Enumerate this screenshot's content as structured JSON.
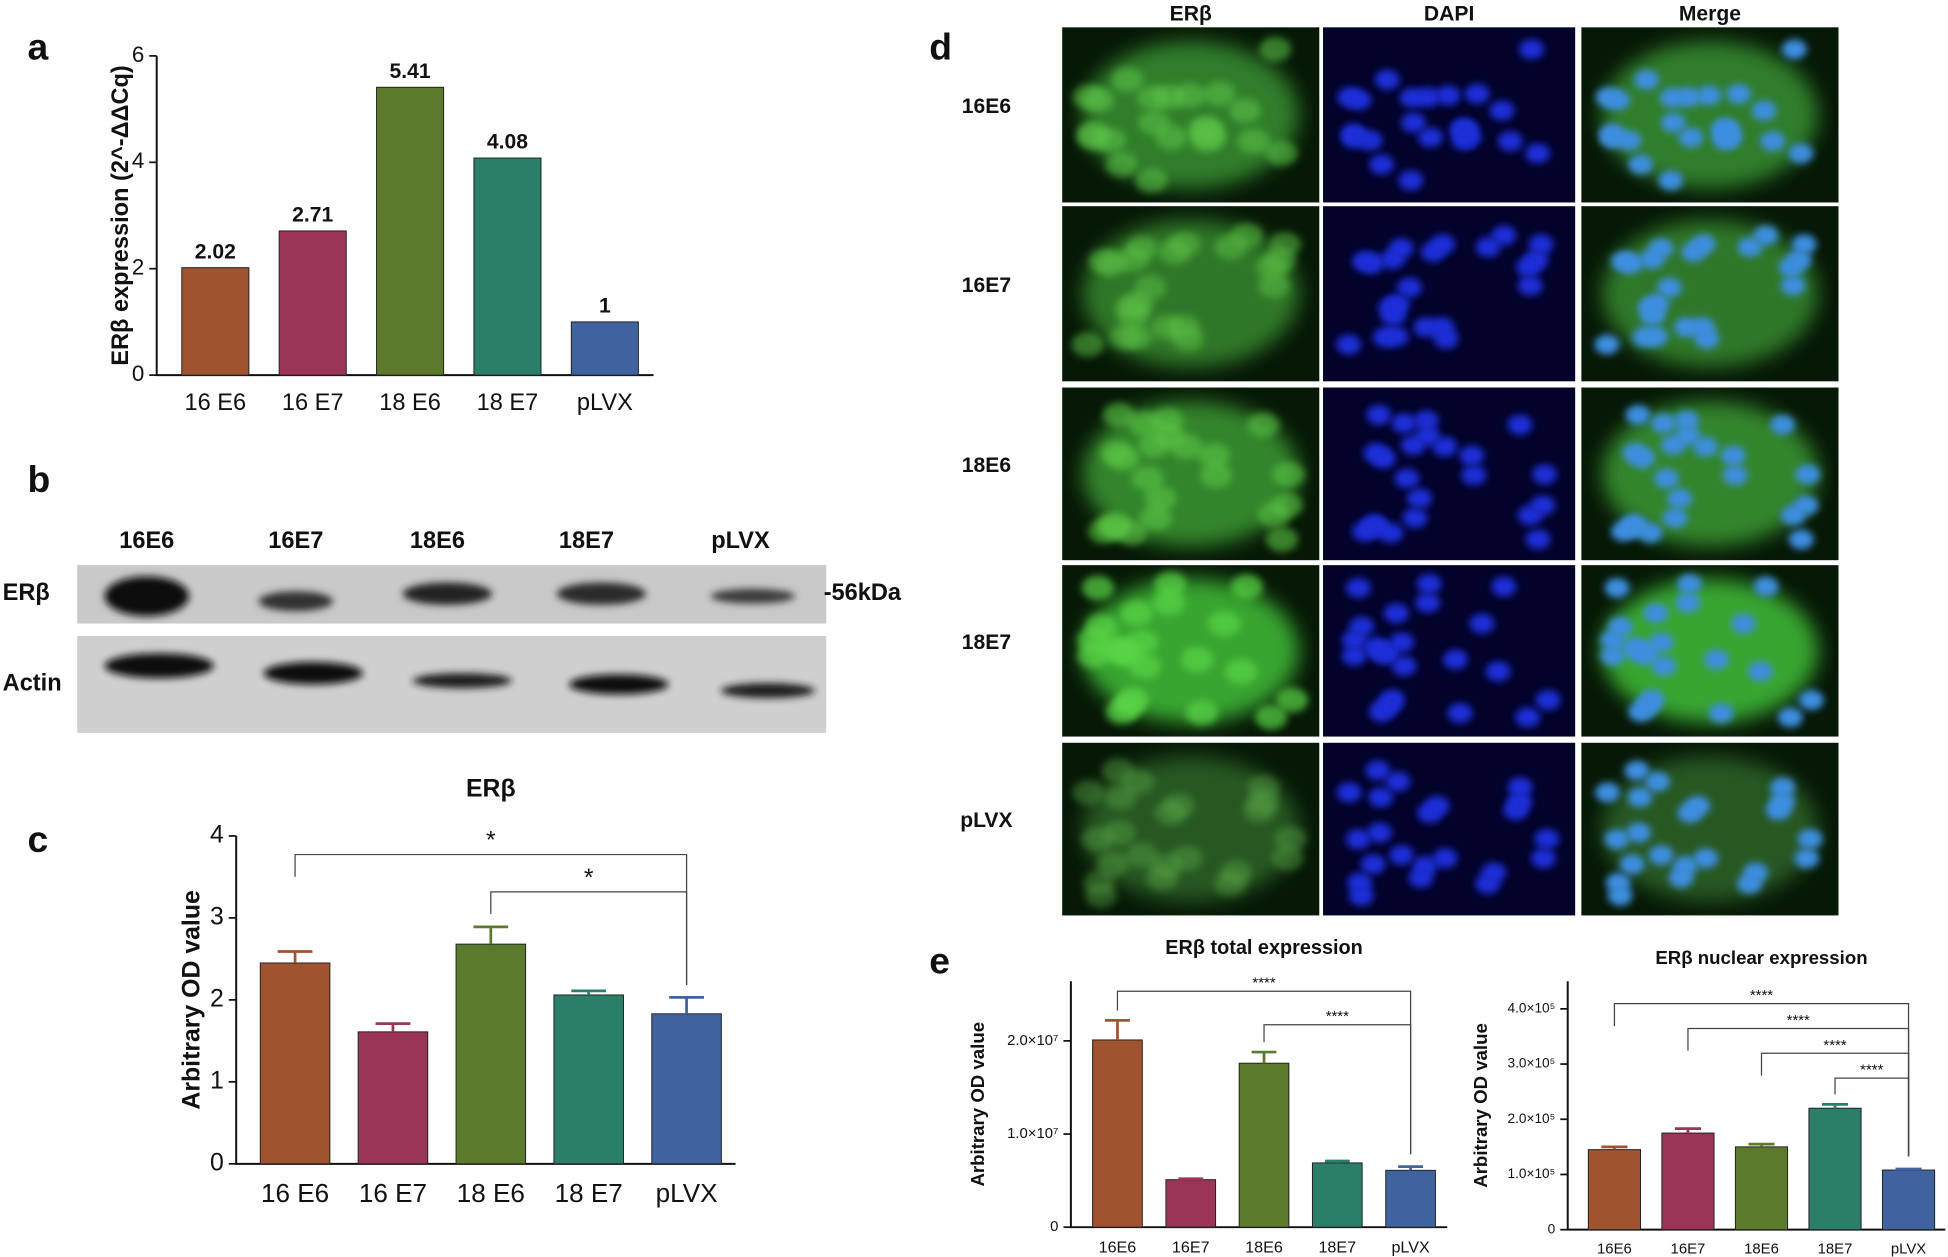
{
  "panel_labels": [
    "a",
    "b",
    "c",
    "d",
    "e"
  ],
  "blot": {
    "lanes": [
      "16E6",
      "16E7",
      "18E6",
      "18E7",
      "pLVX"
    ],
    "rows": [
      "ERβ",
      "Actin"
    ],
    "marker": "-56kDa"
  },
  "microscopy": {
    "columns": [
      "ERβ",
      "DAPI",
      "Merge"
    ],
    "rows": [
      "16E6",
      "16E7",
      "18E6",
      "18E7",
      "pLVX"
    ]
  },
  "chart_data": [
    {
      "type": "bar",
      "y_label": "ERβ expression (2^-ΔΔCq)",
      "categories": [
        "16 E6",
        "16 E7",
        "18 E6",
        "18 E7",
        "pLVX"
      ],
      "values": [
        2.02,
        2.71,
        5.41,
        4.08,
        1
      ],
      "colors": [
        "#a0532f",
        "#9b3558",
        "#5b7a2c",
        "#2b7f68",
        "#4063a0"
      ],
      "ylim": [
        0,
        6
      ],
      "yticks": [
        0,
        2,
        4,
        6
      ]
    },
    {
      "type": "bar",
      "title": "ERβ",
      "y_label": "Arbitrary OD value",
      "categories": [
        "16 E6",
        "16 E7",
        "18 E6",
        "18 E7",
        "pLVX"
      ],
      "values": [
        2.45,
        1.61,
        2.68,
        2.06,
        1.83
      ],
      "errors": [
        0.14,
        0.1,
        0.21,
        0.05,
        0.2
      ],
      "colors": [
        "#a0532f",
        "#9b3558",
        "#5b7a2c",
        "#2b7f68",
        "#4063a0"
      ],
      "ylim": [
        0,
        4
      ],
      "yticks": [
        0,
        1,
        2,
        3,
        4
      ],
      "significance": [
        {
          "from": 0,
          "to": 4,
          "label": "*"
        },
        {
          "from": 2,
          "to": 4,
          "label": "*"
        }
      ]
    },
    {
      "type": "bar",
      "title": "ERβ total expression",
      "y_label": "Arbitrary OD value",
      "categories": [
        "16E6",
        "16E7",
        "18E6",
        "18E7",
        "pLVX"
      ],
      "values": [
        20100000,
        5100000,
        17600000,
        6900000,
        6100000
      ],
      "errors": [
        2100000,
        100000,
        1200000,
        200000,
        400000
      ],
      "colors": [
        "#a0532f",
        "#9b3558",
        "#5b7a2c",
        "#2b7f68",
        "#4063a0"
      ],
      "ylim": [
        0,
        26400000
      ],
      "yticks": [
        0,
        {
          "value": 10000000,
          "label": "1.0×10⁷"
        },
        {
          "value": 20000000,
          "label": "2.0×10⁷"
        }
      ],
      "significance": [
        {
          "from": 0,
          "to": 4,
          "label": "****"
        },
        {
          "from": 2,
          "to": 4,
          "label": "****"
        }
      ]
    },
    {
      "type": "bar",
      "title": "ERβ nuclear expression",
      "y_label": "Arbitrary OD value",
      "categories": [
        "16E6",
        "16E7",
        "18E6",
        "18E7",
        "pLVX"
      ],
      "values": [
        145000,
        175000,
        150000,
        220000,
        108000
      ],
      "errors": [
        5000,
        8000,
        5000,
        7000,
        2000
      ],
      "colors": [
        "#a0532f",
        "#9b3558",
        "#5b7a2c",
        "#2b7f68",
        "#4063a0"
      ],
      "ylim": [
        0,
        450000
      ],
      "yticks": [
        0,
        {
          "value": 100000,
          "label": "1.0×10⁵"
        },
        {
          "value": 200000,
          "label": "2.0×10⁵"
        },
        {
          "value": 300000,
          "label": "3.0×10⁵"
        },
        {
          "value": 400000,
          "label": "4.0×10⁵"
        }
      ],
      "significance": [
        {
          "from": 0,
          "to": 4,
          "label": "****"
        },
        {
          "from": 1,
          "to": 4,
          "label": "****"
        },
        {
          "from": 2,
          "to": 4,
          "label": "****"
        },
        {
          "from": 3,
          "to": 4,
          "label": "****"
        }
      ]
    }
  ]
}
